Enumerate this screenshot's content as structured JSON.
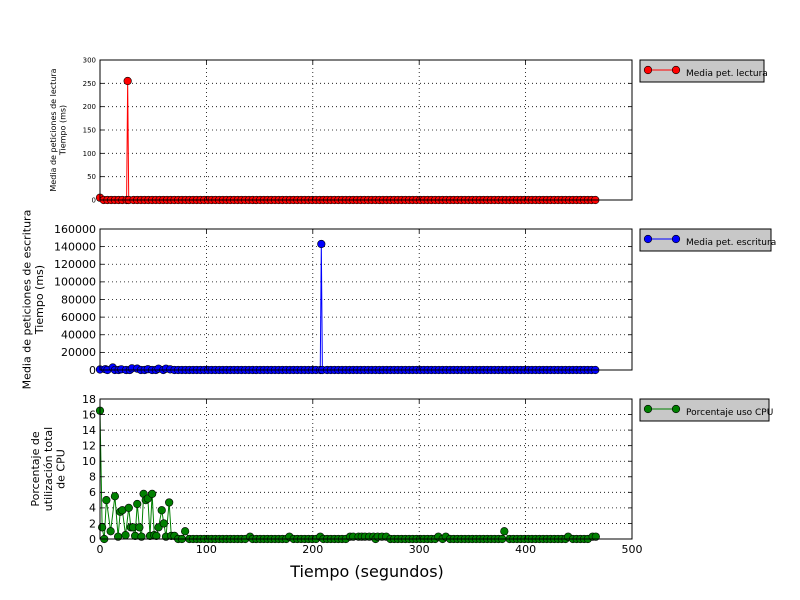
{
  "chart_data": {
    "type": "line",
    "xlabel": "Tiempo (segundos)",
    "xlim": [
      0,
      500
    ],
    "xticks": [
      "0",
      "100",
      "200",
      "300",
      "400",
      "500"
    ],
    "grid": true,
    "panels": [
      {
        "id": "read",
        "ylabel_lines": [
          "Media de peticiones de lectura",
          "Tiempo (ms)"
        ],
        "ylim": [
          0,
          300
        ],
        "yticks": [
          "0",
          "50",
          "100",
          "150",
          "200",
          "250",
          "300"
        ],
        "legend": "Media pet. lectura",
        "legend_position": "outside-right",
        "color": "#ff0000",
        "series": {
          "name": "Media pet. lectura",
          "x_start": 0,
          "x_end": 468,
          "x_step": 3.5,
          "baseline": 0,
          "points": [
            [
              0,
              5
            ],
            [
              25,
              0
            ],
            [
              26,
              255
            ],
            [
              27,
              0
            ]
          ]
        }
      },
      {
        "id": "write",
        "ylabel_lines": [
          "Media de peticiones de escritura",
          "Tiempo (ms)"
        ],
        "ylim": [
          0,
          160000
        ],
        "yticks": [
          "0",
          "20000",
          "40000",
          "60000",
          "80000",
          "100000",
          "120000",
          "140000",
          "160000"
        ],
        "legend": "Media pet. escritura",
        "legend_position": "outside-right",
        "color": "#0000ff",
        "series": {
          "name": "Media pet. escritura",
          "x_start": 0,
          "x_end": 468,
          "x_step": 3.5,
          "baseline": 0,
          "points": [
            [
              0,
              600
            ],
            [
              5,
              900
            ],
            [
              12,
              2800
            ],
            [
              20,
              800
            ],
            [
              30,
              1800
            ],
            [
              35,
              1600
            ],
            [
              45,
              900
            ],
            [
              55,
              1500
            ],
            [
              62,
              1500
            ],
            [
              66,
              700
            ],
            [
              207,
              0
            ],
            [
              208,
              143000
            ],
            [
              209,
              0
            ]
          ]
        }
      },
      {
        "id": "cpu",
        "ylabel_lines": [
          "Porcentaje de",
          "utilización total",
          "de CPU"
        ],
        "ylim": [
          0,
          18
        ],
        "yticks": [
          "0",
          "2",
          "4",
          "6",
          "8",
          "10",
          "12",
          "14",
          "16",
          "18"
        ],
        "legend": "Porcentaje uso CPU",
        "legend_position": "outside-right",
        "color": "#008000",
        "series": {
          "name": "Porcentaje uso CPU",
          "x_start": 0,
          "x_end": 468,
          "x_step": 3.5,
          "baseline": 0,
          "points": [
            [
              0,
              16.5
            ],
            [
              2,
              1.5
            ],
            [
              4,
              0
            ],
            [
              6,
              5
            ],
            [
              10,
              1
            ],
            [
              14,
              5.5
            ],
            [
              17,
              0.3
            ],
            [
              19,
              3.5
            ],
            [
              21,
              3.7
            ],
            [
              24,
              0.5
            ],
            [
              27,
              4
            ],
            [
              29,
              1.5
            ],
            [
              31,
              1.5
            ],
            [
              33,
              0.4
            ],
            [
              35,
              4.5
            ],
            [
              37,
              1.5
            ],
            [
              39,
              0.3
            ],
            [
              41,
              5.8
            ],
            [
              43,
              5
            ],
            [
              45,
              5.2
            ],
            [
              47,
              0.4
            ],
            [
              49,
              5.8
            ],
            [
              51,
              0.5
            ],
            [
              53,
              0.4
            ],
            [
              55,
              1.5
            ],
            [
              58,
              3.7
            ],
            [
              60,
              2
            ],
            [
              62,
              0.3
            ],
            [
              65,
              4.7
            ],
            [
              67,
              0.4
            ],
            [
              70,
              0.4
            ],
            [
              80,
              1
            ],
            [
              141,
              0.3
            ],
            [
              178,
              0.3
            ],
            [
              207,
              0.3
            ],
            [
              235,
              0.3
            ],
            [
              238,
              0.3
            ],
            [
              243,
              0.3
            ],
            [
              246,
              0.3
            ],
            [
              249,
              0.3
            ],
            [
              253,
              0.3
            ],
            [
              257,
              0.3
            ],
            [
              261,
              0.3
            ],
            [
              265,
              0.3
            ],
            [
              269,
              0.3
            ],
            [
              318,
              0.3
            ],
            [
              325,
              0.3
            ],
            [
              380,
              1
            ],
            [
              440,
              0.3
            ],
            [
              463,
              0.3
            ],
            [
              466,
              0.3
            ]
          ]
        }
      }
    ]
  }
}
